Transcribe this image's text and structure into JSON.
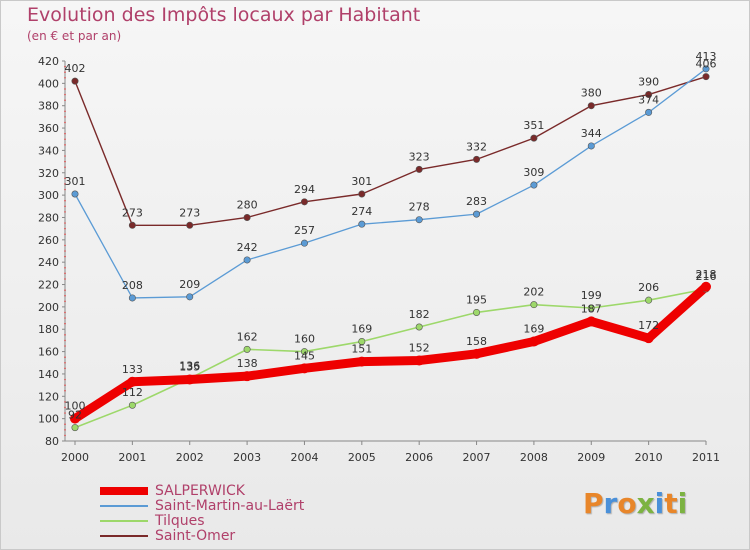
{
  "title": "Evolution des Impôts locaux par Habitant",
  "subtitle": "(en € et par an)",
  "brand": {
    "letters": [
      "P",
      "r",
      "o",
      "x",
      "i",
      "t",
      "i"
    ],
    "colors": [
      "#e8862a",
      "#4a90d9",
      "#e8862a",
      "#7cb342",
      "#4a90d9",
      "#e8862a",
      "#7cb342"
    ]
  },
  "chart_data": {
    "type": "line",
    "x": [
      "2000",
      "2001",
      "2002",
      "2003",
      "2004",
      "2005",
      "2006",
      "2007",
      "2008",
      "2009",
      "2010",
      "2011"
    ],
    "ylim": [
      80,
      420
    ],
    "yticks": [
      80,
      100,
      120,
      140,
      160,
      180,
      200,
      220,
      240,
      260,
      280,
      300,
      320,
      340,
      360,
      380,
      400,
      420
    ],
    "grid": false,
    "legend_position": "bottom-left",
    "series": [
      {
        "name": "SALPERWICK",
        "color": "#ee0000",
        "values": [
          100,
          133,
          135,
          138,
          145,
          151,
          152,
          158,
          169,
          187,
          172,
          218
        ]
      },
      {
        "name": "Saint-Martin-au-Laërt",
        "color": "#5b9bd5",
        "values": [
          301,
          208,
          209,
          242,
          257,
          274,
          278,
          283,
          309,
          344,
          374,
          413
        ]
      },
      {
        "name": "Tilques",
        "color": "#9dd86a",
        "values": [
          92,
          112,
          136,
          162,
          160,
          169,
          182,
          195,
          202,
          199,
          206,
          216
        ]
      },
      {
        "name": "Saint-Omer",
        "color": "#7a2a2a",
        "values": [
          402,
          273,
          273,
          280,
          294,
          301,
          323,
          332,
          351,
          380,
          390,
          406
        ]
      }
    ]
  }
}
